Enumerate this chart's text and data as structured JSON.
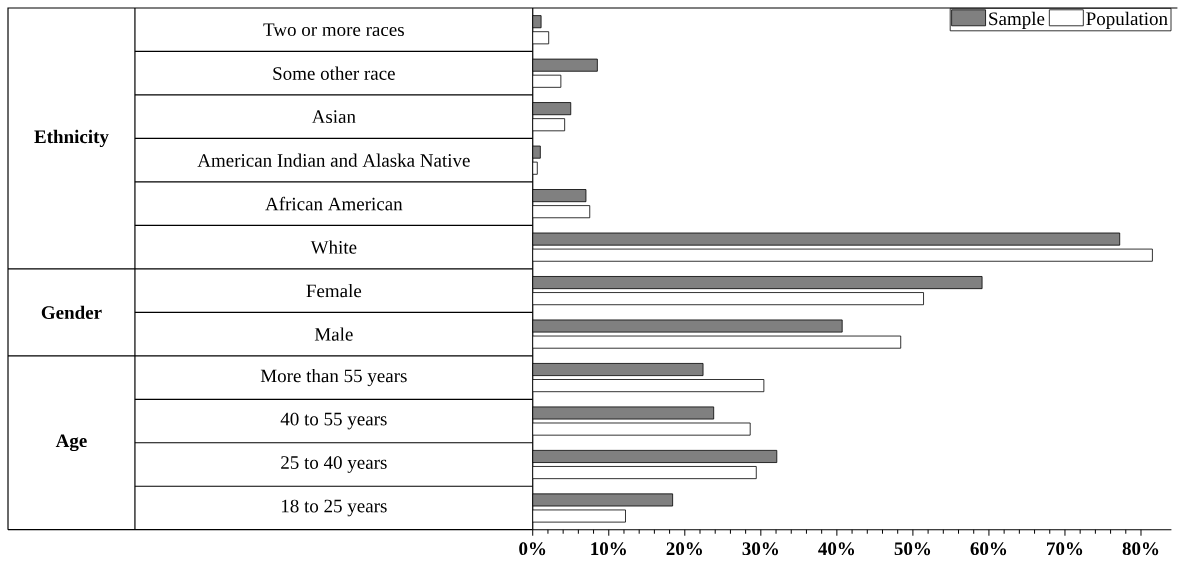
{
  "chart_data": {
    "type": "bar",
    "orientation": "horizontal",
    "categories": [
      "Two or more races",
      "Some other race",
      "Asian",
      "American Indian and Alaska Native",
      "African American",
      "White",
      "Female",
      "Male",
      "More than 55 years",
      "40 to 55 years",
      "25 to 40 years",
      "18 to 25 years"
    ],
    "series": [
      {
        "name": "Sample",
        "color": "#808080",
        "values": [
          1.1,
          8.5,
          5.0,
          1.0,
          7.0,
          77.2,
          59.1,
          40.7,
          22.4,
          23.8,
          32.1,
          18.4
        ]
      },
      {
        "name": "Population",
        "color": "#ffffff",
        "values": [
          2.1,
          3.7,
          4.2,
          0.6,
          7.5,
          81.5,
          51.4,
          48.4,
          30.4,
          28.6,
          29.4,
          12.2
        ]
      }
    ],
    "xlim": [
      0,
      84
    ],
    "xticks": [
      {
        "value": 0,
        "label": "0%"
      },
      {
        "value": 10,
        "label": "10%"
      },
      {
        "value": 20,
        "label": "20%"
      },
      {
        "value": 30,
        "label": "30%"
      },
      {
        "value": 40,
        "label": "40%"
      },
      {
        "value": 50,
        "label": "50%"
      },
      {
        "value": 60,
        "label": "60%"
      },
      {
        "value": 70,
        "label": "70%"
      },
      {
        "value": 80,
        "label": "80%"
      }
    ],
    "annotations": [
      "Ethnicity",
      "Gender",
      "Age"
    ],
    "legend": "top right"
  }
}
